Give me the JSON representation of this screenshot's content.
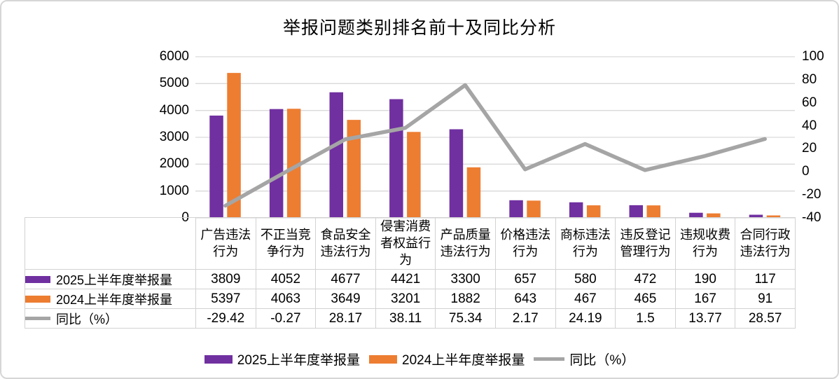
{
  "title": "举报问题类别排名前十及同比分析",
  "chart_data": {
    "type": "combo-bar-line",
    "title": "举报问题类别排名前十及同比分析",
    "categories": [
      "广告违法行为",
      "不正当竞争行为",
      "食品安全违法行为",
      "侵害消费者权益行为",
      "产品质量违法行为",
      "价格违法行为",
      "商标违法行为",
      "违反登记管理行为",
      "违规收费行为",
      "合同行政违法行为"
    ],
    "series": [
      {
        "name": "2025上半年度举报量",
        "type": "bar",
        "axis": "left",
        "color": "#7030A0",
        "values": [
          3809,
          4052,
          4677,
          4421,
          3300,
          657,
          580,
          472,
          190,
          117
        ]
      },
      {
        "name": "2024上半年度举报量",
        "type": "bar",
        "axis": "left",
        "color": "#ED7D31",
        "values": [
          5397,
          4063,
          3649,
          3201,
          1882,
          643,
          467,
          465,
          167,
          91
        ]
      },
      {
        "name": "同比（%）",
        "type": "line",
        "axis": "right",
        "color": "#A5A5A5",
        "values": [
          -29.42,
          -0.27,
          28.17,
          38.11,
          75.34,
          2.17,
          24.19,
          1.5,
          13.77,
          28.57
        ]
      }
    ],
    "left_axis": {
      "min": 0,
      "max": 6000,
      "ticks": [
        6000,
        5000,
        4000,
        3000,
        2000,
        1000,
        0
      ]
    },
    "right_axis": {
      "min": -40,
      "max": 100,
      "ticks": [
        100,
        80,
        60,
        40,
        20,
        0,
        -20,
        -40
      ]
    },
    "grid": "horizontal",
    "legend_position": "bottom"
  },
  "colors": {
    "gridline": "#D9D9D9",
    "axis_line": "#D9D9D9",
    "table_border": "#D2D2D2",
    "text": "#000000",
    "background": "#FFFFFF",
    "frame_border": "#D6D6D6"
  }
}
